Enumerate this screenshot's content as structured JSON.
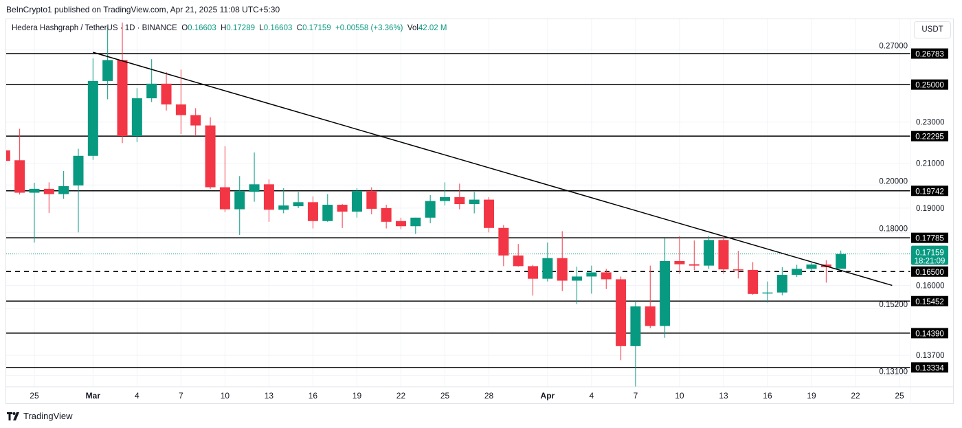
{
  "publish_line": "BeInCrypto1 published on TradingView.com, Apr 21, 2025 11:08 UTC+5:30",
  "legend": {
    "symbol": "Hedera Hashgraph / TetherUS",
    "interval": "1D",
    "exchange": "BINANCE",
    "o_label": "O",
    "o": "0.16603",
    "h_label": "H",
    "h": "0.17289",
    "l_label": "L",
    "l": "0.16603",
    "c_label": "C",
    "c": "0.17159",
    "change": "+0.00558 (+3.36%)",
    "vol_label": "Vol",
    "vol": "42.02 M"
  },
  "currency_button": "USDT",
  "brand": "TradingView",
  "colors": {
    "up": "#089981",
    "down": "#f23645",
    "line": "#000000",
    "grid": "#f0f3fa"
  },
  "chart_data": {
    "type": "candlestick",
    "title": "Hedera Hashgraph / TetherUS 1D BINANCE",
    "yscale": "log",
    "ylim": [
      0.127,
      0.29
    ],
    "x_ticks": [
      {
        "label": "25",
        "index": 2,
        "bold": false
      },
      {
        "label": "Mar",
        "index": 6,
        "bold": true
      },
      {
        "label": "4",
        "index": 9,
        "bold": false
      },
      {
        "label": "7",
        "index": 12,
        "bold": false
      },
      {
        "label": "10",
        "index": 15,
        "bold": false
      },
      {
        "label": "13",
        "index": 18,
        "bold": false
      },
      {
        "label": "16",
        "index": 21,
        "bold": false
      },
      {
        "label": "19",
        "index": 24,
        "bold": false
      },
      {
        "label": "22",
        "index": 27,
        "bold": false
      },
      {
        "label": "25",
        "index": 30,
        "bold": false
      },
      {
        "label": "28",
        "index": 33,
        "bold": false
      },
      {
        "label": "Apr",
        "index": 37,
        "bold": true
      },
      {
        "label": "4",
        "index": 40,
        "bold": false
      },
      {
        "label": "7",
        "index": 43,
        "bold": false
      },
      {
        "label": "10",
        "index": 46,
        "bold": false
      },
      {
        "label": "13",
        "index": 49,
        "bold": false
      },
      {
        "label": "16",
        "index": 52,
        "bold": false
      },
      {
        "label": "19",
        "index": 55,
        "bold": false
      },
      {
        "label": "22",
        "index": 58,
        "bold": false
      },
      {
        "label": "25",
        "index": 61,
        "bold": false
      }
    ],
    "y_ticks": [
      "0.27000",
      "0.23000",
      "0.21000",
      "0.20000",
      "0.19000",
      "0.18000",
      "0.16000",
      "0.15200",
      "0.13700",
      "0.13100"
    ],
    "levels": [
      {
        "label": "0.26783",
        "style": "solid"
      },
      {
        "label": "0.25000",
        "style": "solid"
      },
      {
        "label": "0.22295",
        "style": "solid"
      },
      {
        "label": "0.19742",
        "style": "solid"
      },
      {
        "label": "0.17785",
        "style": "solid"
      },
      {
        "label": "0.16500",
        "style": "dashed"
      },
      {
        "label": "0.15452",
        "style": "solid"
      },
      {
        "label": "0.14390",
        "style": "solid"
      },
      {
        "label": "0.13334",
        "style": "solid"
      }
    ],
    "last_price": {
      "label": "0.17159",
      "countdown": "18:21:09"
    },
    "trendline": [
      {
        "index": 6,
        "price": 0.2686
      },
      {
        "index": 60.5,
        "price": 0.16
      }
    ],
    "candles": [
      {
        "date": "Feb 23",
        "o": 0.216,
        "h": 0.218,
        "l": 0.21,
        "c": 0.211
      },
      {
        "date": "Feb 24",
        "o": 0.2113,
        "h": 0.2266,
        "l": 0.1958,
        "c": 0.1966
      },
      {
        "date": "Feb 25",
        "o": 0.1966,
        "h": 0.201,
        "l": 0.176,
        "c": 0.1983
      },
      {
        "date": "Feb 26",
        "o": 0.1983,
        "h": 0.2012,
        "l": 0.188,
        "c": 0.196
      },
      {
        "date": "Feb 27",
        "o": 0.196,
        "h": 0.2063,
        "l": 0.1939,
        "c": 0.1995
      },
      {
        "date": "Feb 28",
        "o": 0.1998,
        "h": 0.2168,
        "l": 0.18,
        "c": 0.2134
      },
      {
        "date": "Mar 1",
        "o": 0.2134,
        "h": 0.265,
        "l": 0.2115,
        "c": 0.252
      },
      {
        "date": "Mar 2",
        "o": 0.252,
        "h": 0.284,
        "l": 0.242,
        "c": 0.264
      },
      {
        "date": "Mar 3",
        "o": 0.264,
        "h": 0.287,
        "l": 0.2195,
        "c": 0.223
      },
      {
        "date": "Mar 4",
        "o": 0.223,
        "h": 0.248,
        "l": 0.22,
        "c": 0.2425
      },
      {
        "date": "Mar 5",
        "o": 0.2425,
        "h": 0.2645,
        "l": 0.2405,
        "c": 0.2505
      },
      {
        "date": "Mar 6",
        "o": 0.2505,
        "h": 0.257,
        "l": 0.236,
        "c": 0.2392
      },
      {
        "date": "Mar 7",
        "o": 0.2392,
        "h": 0.2585,
        "l": 0.224,
        "c": 0.2336
      },
      {
        "date": "Mar 8",
        "o": 0.2336,
        "h": 0.2372,
        "l": 0.223,
        "c": 0.2283
      },
      {
        "date": "Mar 9",
        "o": 0.2283,
        "h": 0.2325,
        "l": 0.1983,
        "c": 0.199
      },
      {
        "date": "Mar 10",
        "o": 0.199,
        "h": 0.218,
        "l": 0.1883,
        "c": 0.1895
      },
      {
        "date": "Mar 11",
        "o": 0.1895,
        "h": 0.204,
        "l": 0.179,
        "c": 0.1974
      },
      {
        "date": "Mar 12",
        "o": 0.197,
        "h": 0.215,
        "l": 0.1927,
        "c": 0.2003
      },
      {
        "date": "Mar 13",
        "o": 0.2003,
        "h": 0.2025,
        "l": 0.1843,
        "c": 0.1893
      },
      {
        "date": "Mar 14",
        "o": 0.1893,
        "h": 0.1986,
        "l": 0.1878,
        "c": 0.1911
      },
      {
        "date": "Mar 15",
        "o": 0.1908,
        "h": 0.197,
        "l": 0.19,
        "c": 0.1925
      },
      {
        "date": "Mar 16",
        "o": 0.1925,
        "h": 0.195,
        "l": 0.1816,
        "c": 0.1846
      },
      {
        "date": "Mar 17",
        "o": 0.1846,
        "h": 0.196,
        "l": 0.1843,
        "c": 0.1914
      },
      {
        "date": "Mar 18",
        "o": 0.1914,
        "h": 0.1917,
        "l": 0.1818,
        "c": 0.1885
      },
      {
        "date": "Mar 19",
        "o": 0.1885,
        "h": 0.1986,
        "l": 0.186,
        "c": 0.1974
      },
      {
        "date": "Mar 20",
        "o": 0.1974,
        "h": 0.199,
        "l": 0.1874,
        "c": 0.1897
      },
      {
        "date": "Mar 21",
        "o": 0.19,
        "h": 0.1914,
        "l": 0.1816,
        "c": 0.1843
      },
      {
        "date": "Mar 22",
        "o": 0.1846,
        "h": 0.186,
        "l": 0.1813,
        "c": 0.1825
      },
      {
        "date": "Mar 23",
        "o": 0.1825,
        "h": 0.186,
        "l": 0.1794,
        "c": 0.186
      },
      {
        "date": "Mar 24",
        "o": 0.186,
        "h": 0.1956,
        "l": 0.1837,
        "c": 0.193
      },
      {
        "date": "Mar 25",
        "o": 0.193,
        "h": 0.2012,
        "l": 0.1911,
        "c": 0.1947
      },
      {
        "date": "Mar 26",
        "o": 0.1947,
        "h": 0.2006,
        "l": 0.1895,
        "c": 0.1917
      },
      {
        "date": "Mar 27",
        "o": 0.1917,
        "h": 0.197,
        "l": 0.1878,
        "c": 0.1936
      },
      {
        "date": "Mar 28",
        "o": 0.1936,
        "h": 0.1947,
        "l": 0.18,
        "c": 0.1818
      },
      {
        "date": "Mar 29",
        "o": 0.1818,
        "h": 0.183,
        "l": 0.167,
        "c": 0.171
      },
      {
        "date": "Mar 30",
        "o": 0.171,
        "h": 0.1754,
        "l": 0.1668,
        "c": 0.167
      },
      {
        "date": "Mar 31",
        "o": 0.167,
        "h": 0.1675,
        "l": 0.1564,
        "c": 0.1624
      },
      {
        "date": "Apr 1",
        "o": 0.1624,
        "h": 0.176,
        "l": 0.1614,
        "c": 0.17
      },
      {
        "date": "Apr 2",
        "o": 0.17,
        "h": 0.1805,
        "l": 0.158,
        "c": 0.1617
      },
      {
        "date": "Apr 3",
        "o": 0.1617,
        "h": 0.1668,
        "l": 0.1535,
        "c": 0.1632
      },
      {
        "date": "Apr 4",
        "o": 0.1632,
        "h": 0.1672,
        "l": 0.1571,
        "c": 0.1647
      },
      {
        "date": "Apr 5",
        "o": 0.1647,
        "h": 0.166,
        "l": 0.1587,
        "c": 0.1622
      },
      {
        "date": "Apr 6",
        "o": 0.1622,
        "h": 0.1632,
        "l": 0.1355,
        "c": 0.1398
      },
      {
        "date": "Apr 7",
        "o": 0.1398,
        "h": 0.1545,
        "l": 0.1278,
        "c": 0.1527
      },
      {
        "date": "Apr 8",
        "o": 0.1527,
        "h": 0.1672,
        "l": 0.1455,
        "c": 0.1462
      },
      {
        "date": "Apr 9",
        "o": 0.1462,
        "h": 0.1777,
        "l": 0.1424,
        "c": 0.1689
      },
      {
        "date": "Apr 10",
        "o": 0.1689,
        "h": 0.1785,
        "l": 0.1642,
        "c": 0.1677
      },
      {
        "date": "Apr 11",
        "o": 0.1677,
        "h": 0.1768,
        "l": 0.1655,
        "c": 0.1672
      },
      {
        "date": "Apr 12",
        "o": 0.1672,
        "h": 0.1785,
        "l": 0.166,
        "c": 0.177
      },
      {
        "date": "Apr 13",
        "o": 0.177,
        "h": 0.1782,
        "l": 0.1642,
        "c": 0.1658
      },
      {
        "date": "Apr 14",
        "o": 0.1658,
        "h": 0.1728,
        "l": 0.1625,
        "c": 0.1655
      },
      {
        "date": "Apr 15",
        "o": 0.1656,
        "h": 0.1685,
        "l": 0.1567,
        "c": 0.157
      },
      {
        "date": "Apr 16",
        "o": 0.1572,
        "h": 0.1614,
        "l": 0.154,
        "c": 0.1575
      },
      {
        "date": "Apr 17",
        "o": 0.1575,
        "h": 0.1666,
        "l": 0.1565,
        "c": 0.1638
      },
      {
        "date": "Apr 18",
        "o": 0.1638,
        "h": 0.1675,
        "l": 0.163,
        "c": 0.166
      },
      {
        "date": "Apr 19",
        "o": 0.166,
        "h": 0.1682,
        "l": 0.1652,
        "c": 0.1676
      },
      {
        "date": "Apr 20",
        "o": 0.1676,
        "h": 0.1692,
        "l": 0.161,
        "c": 0.1666
      },
      {
        "date": "Apr 21",
        "o": 0.16603,
        "h": 0.17289,
        "l": 0.16603,
        "c": 0.17159
      }
    ]
  }
}
